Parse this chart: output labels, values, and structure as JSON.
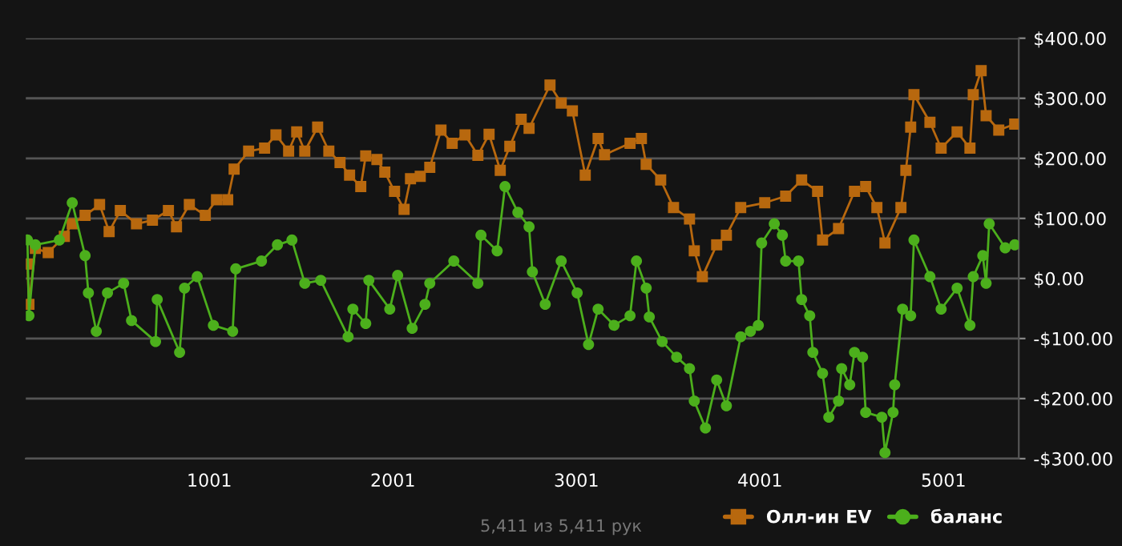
{
  "chart_data": {
    "type": "line",
    "xlim": [
      1,
      5411
    ],
    "xticks": [
      1001,
      2001,
      3001,
      4001,
      5001
    ],
    "ylim": [
      -300,
      400
    ],
    "yticks": [
      {
        "value": -300,
        "label": "-$300.00"
      },
      {
        "value": -200,
        "label": "-$200.00"
      },
      {
        "value": -100,
        "label": "-$100.00"
      },
      {
        "value": 0,
        "label": "$0.00"
      },
      {
        "value": 100,
        "label": "$100.00"
      },
      {
        "value": 200,
        "label": "$200.00"
      },
      {
        "value": 300,
        "label": "$300.00"
      },
      {
        "value": 400,
        "label": "$400.00"
      }
    ],
    "grid": "y",
    "legend": "bottom right",
    "annotations": [
      "5,411 из 5,411 рук"
    ],
    "series": [
      {
        "name": "Олл-ин EV",
        "color": "#b8680e",
        "marker": "square",
        "x": [
          10,
          18,
          53,
          123,
          211,
          254,
          324,
          403,
          455,
          516,
          604,
          691,
          778,
          822,
          892,
          979,
          1040,
          1101,
          1136,
          1215,
          1302,
          1364,
          1433,
          1477,
          1521,
          1591,
          1652,
          1713,
          1765,
          1826,
          1853,
          1914,
          1957,
          2010,
          2062,
          2097,
          2150,
          2202,
          2263,
          2324,
          2394,
          2464,
          2525,
          2586,
          2638,
          2700,
          2743,
          2857,
          2918,
          2979,
          3049,
          3119,
          3154,
          3293,
          3355,
          3381,
          3460,
          3530,
          3617,
          3643,
          3687,
          3765,
          3818,
          3896,
          4027,
          4141,
          4228,
          4315,
          4342,
          4429,
          4516,
          4577,
          4638,
          4682,
          4769,
          4796,
          4822,
          4840,
          4927,
          4988,
          5075,
          5145,
          5163,
          5206,
          5233,
          5302,
          5389
        ],
        "values": [
          24,
          -43,
          50,
          43,
          70,
          91,
          105,
          123,
          78,
          113,
          91,
          97,
          113,
          86,
          123,
          105,
          131,
          131,
          182,
          212,
          217,
          239,
          212,
          244,
          212,
          252,
          212,
          193,
          172,
          153,
          204,
          198,
          177,
          145,
          115,
          166,
          170,
          185,
          247,
          225,
          239,
          205,
          240,
          180,
          220,
          265,
          250,
          322,
          292,
          279,
          172,
          233,
          206,
          225,
          233,
          190,
          164,
          118,
          99,
          46,
          3,
          56,
          72,
          118,
          126,
          137,
          164,
          145,
          64,
          83,
          145,
          153,
          118,
          59,
          118,
          180,
          252,
          306,
          260,
          217,
          244,
          217,
          306,
          346,
          271,
          247,
          257
        ]
      },
      {
        "name": "баланс",
        "color": "#4caf1c",
        "marker": "circle",
        "x": [
          10,
          18,
          53,
          184,
          254,
          324,
          342,
          385,
          446,
          534,
          577,
          708,
          717,
          839,
          866,
          935,
          1023,
          1128,
          1145,
          1285,
          1372,
          1451,
          1521,
          1608,
          1757,
          1783,
          1853,
          1870,
          1984,
          2027,
          2106,
          2176,
          2202,
          2333,
          2464,
          2481,
          2569,
          2612,
          2682,
          2743,
          2761,
          2831,
          2918,
          3005,
          3067,
          3119,
          3206,
          3293,
          3328,
          3381,
          3398,
          3468,
          3547,
          3617,
          3643,
          3704,
          3765,
          3818,
          3896,
          3949,
          3992,
          4010,
          4079,
          4123,
          4141,
          4211,
          4228,
          4272,
          4289,
          4342,
          4376,
          4429,
          4446,
          4490,
          4516,
          4560,
          4577,
          4665,
          4682,
          4726,
          4735,
          4778,
          4822,
          4840,
          4927,
          4988,
          5075,
          5145,
          5163,
          5215,
          5233,
          5250,
          5337,
          5389
        ],
        "values": [
          64,
          -62,
          56,
          64,
          126,
          38,
          -24,
          -88,
          -24,
          -8,
          -70,
          -105,
          -35,
          -123,
          -16,
          3,
          -78,
          -88,
          16,
          29,
          56,
          64,
          -8,
          -3,
          -97,
          -51,
          -75,
          -3,
          -51,
          5,
          -83,
          -43,
          -8,
          29,
          -8,
          72,
          46,
          153,
          110,
          86,
          11,
          -43,
          29,
          -24,
          -110,
          -51,
          -78,
          -62,
          29,
          -16,
          -64,
          -105,
          -131,
          -150,
          -204,
          -249,
          -169,
          -212,
          -97,
          -88,
          -78,
          59,
          91,
          72,
          29,
          29,
          -35,
          -62,
          -123,
          -158,
          -231,
          -204,
          -150,
          -177,
          -123,
          -131,
          -223,
          -231,
          -290,
          -223,
          -177,
          -51,
          -62,
          64,
          3,
          -51,
          -16,
          -78,
          3,
          38,
          -8,
          91,
          51,
          56
        ]
      }
    ]
  }
}
